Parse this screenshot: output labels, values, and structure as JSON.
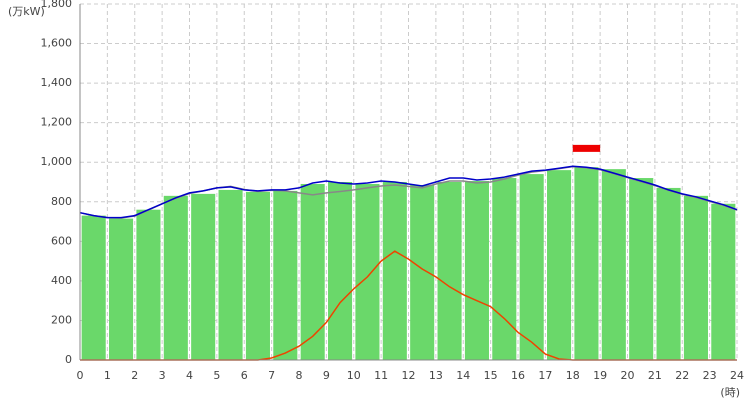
{
  "chart_data": {
    "type": "demand",
    "y_unit": "(万kW)",
    "x_unit": "(時)",
    "xlim": [
      0,
      24
    ],
    "xticks": [
      0,
      1,
      2,
      3,
      4,
      5,
      6,
      7,
      8,
      9,
      10,
      11,
      12,
      13,
      14,
      15,
      16,
      17,
      18,
      19,
      20,
      21,
      22,
      23,
      24
    ],
    "ylim": [
      0,
      1800
    ],
    "yticks": [
      0,
      200,
      400,
      600,
      800,
      {
        "value": 1000,
        "label": "1,000"
      },
      {
        "value": 1200,
        "label": "1,200"
      },
      {
        "value": 1400,
        "label": "1,400"
      },
      {
        "value": 1600,
        "label": "1,600"
      },
      {
        "value": 1800,
        "label": "1,800"
      }
    ],
    "grid": true,
    "bars": {
      "color": "#6ad86a",
      "x": [
        0,
        1,
        2,
        3,
        4,
        5,
        6,
        7,
        8,
        9,
        10,
        11,
        12,
        13,
        14,
        15,
        16,
        17,
        18,
        19,
        20,
        21,
        22,
        23
      ],
      "values": [
        730,
        715,
        760,
        830,
        840,
        860,
        850,
        855,
        890,
        900,
        890,
        900,
        885,
        900,
        905,
        920,
        940,
        960,
        975,
        965,
        920,
        870,
        830,
        790
      ]
    },
    "x": [
      0,
      0.5,
      1,
      1.5,
      2,
      2.5,
      3,
      3.5,
      4,
      4.5,
      5,
      5.5,
      6,
      6.5,
      7,
      7.5,
      8,
      8.5,
      9,
      9.5,
      10,
      10.5,
      11,
      11.5,
      12,
      12.5,
      13,
      13.5,
      14,
      14.5,
      15,
      15.5,
      16,
      16.5,
      17,
      17.5,
      18,
      18.5,
      19,
      19.5,
      20,
      20.5,
      21,
      21.5,
      22,
      22.5,
      23,
      23.5,
      24
    ],
    "series": [
      {
        "color": "#888888",
        "values": [
          745,
          730,
          720,
          718,
          728,
          758,
          790,
          818,
          842,
          855,
          870,
          878,
          862,
          852,
          858,
          855,
          845,
          835,
          845,
          852,
          860,
          870,
          880,
          885,
          878,
          870,
          890,
          905,
          905,
          895,
          900,
          915,
          935,
          950,
          958,
          968,
          978,
          972,
          962,
          942,
          922,
          902,
          882,
          858,
          838,
          822,
          802,
          782,
          758
        ]
      },
      {
        "color": "#0000c8",
        "values": [
          745,
          730,
          720,
          720,
          730,
          760,
          790,
          820,
          845,
          855,
          870,
          875,
          860,
          855,
          860,
          860,
          870,
          895,
          905,
          895,
          890,
          895,
          905,
          900,
          890,
          880,
          900,
          920,
          920,
          910,
          915,
          925,
          940,
          955,
          960,
          970,
          980,
          975,
          965,
          945,
          925,
          905,
          885,
          860,
          840,
          825,
          805,
          785,
          760
        ]
      },
      {
        "color": "#ee4400",
        "values": [
          0,
          0,
          0,
          0,
          0,
          0,
          0,
          0,
          0,
          0,
          0,
          0,
          0,
          0,
          10,
          35,
          70,
          120,
          190,
          290,
          360,
          420,
          500,
          550,
          510,
          460,
          420,
          370,
          330,
          300,
          270,
          210,
          140,
          90,
          30,
          5,
          0,
          0,
          0,
          0,
          0,
          0,
          0,
          0,
          0,
          0,
          0,
          0,
          0
        ]
      }
    ],
    "peak_forecast": {
      "color": "#ee0000",
      "x": [
        18,
        19
      ],
      "value": 1070
    }
  }
}
